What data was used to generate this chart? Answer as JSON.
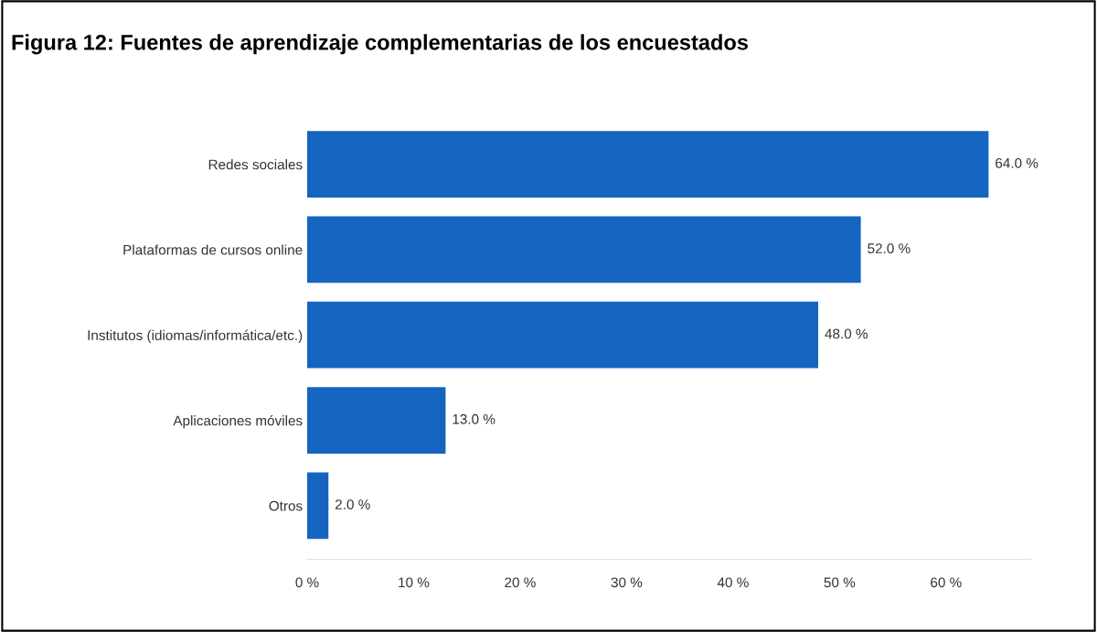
{
  "chart_data": {
    "type": "bar",
    "orientation": "horizontal",
    "title": "Figura 12: Fuentes de aprendizaje complementarias de los encuestados",
    "categories": [
      "Redes sociales",
      "Plataformas de cursos online",
      "Institutos (idiomas/informática/etc.)",
      "Aplicaciones móviles",
      "Otros"
    ],
    "values": [
      64.0,
      52.0,
      48.0,
      13.0,
      2.0
    ],
    "value_labels": [
      "64.0 %",
      "52.0 %",
      "48.0 %",
      "13.0 %",
      "2.0 %"
    ],
    "color": "#1565c0",
    "xlim": [
      0,
      68
    ],
    "xticks": [
      {
        "value": 0,
        "label": "0 %"
      },
      {
        "value": 10,
        "label": "10 %"
      },
      {
        "value": 20,
        "label": "20 %"
      },
      {
        "value": 30,
        "label": "30 %"
      },
      {
        "value": 40,
        "label": "40 %"
      },
      {
        "value": 50,
        "label": "50 %"
      },
      {
        "value": 60,
        "label": "60 %"
      }
    ],
    "grid": false,
    "legend": false
  }
}
